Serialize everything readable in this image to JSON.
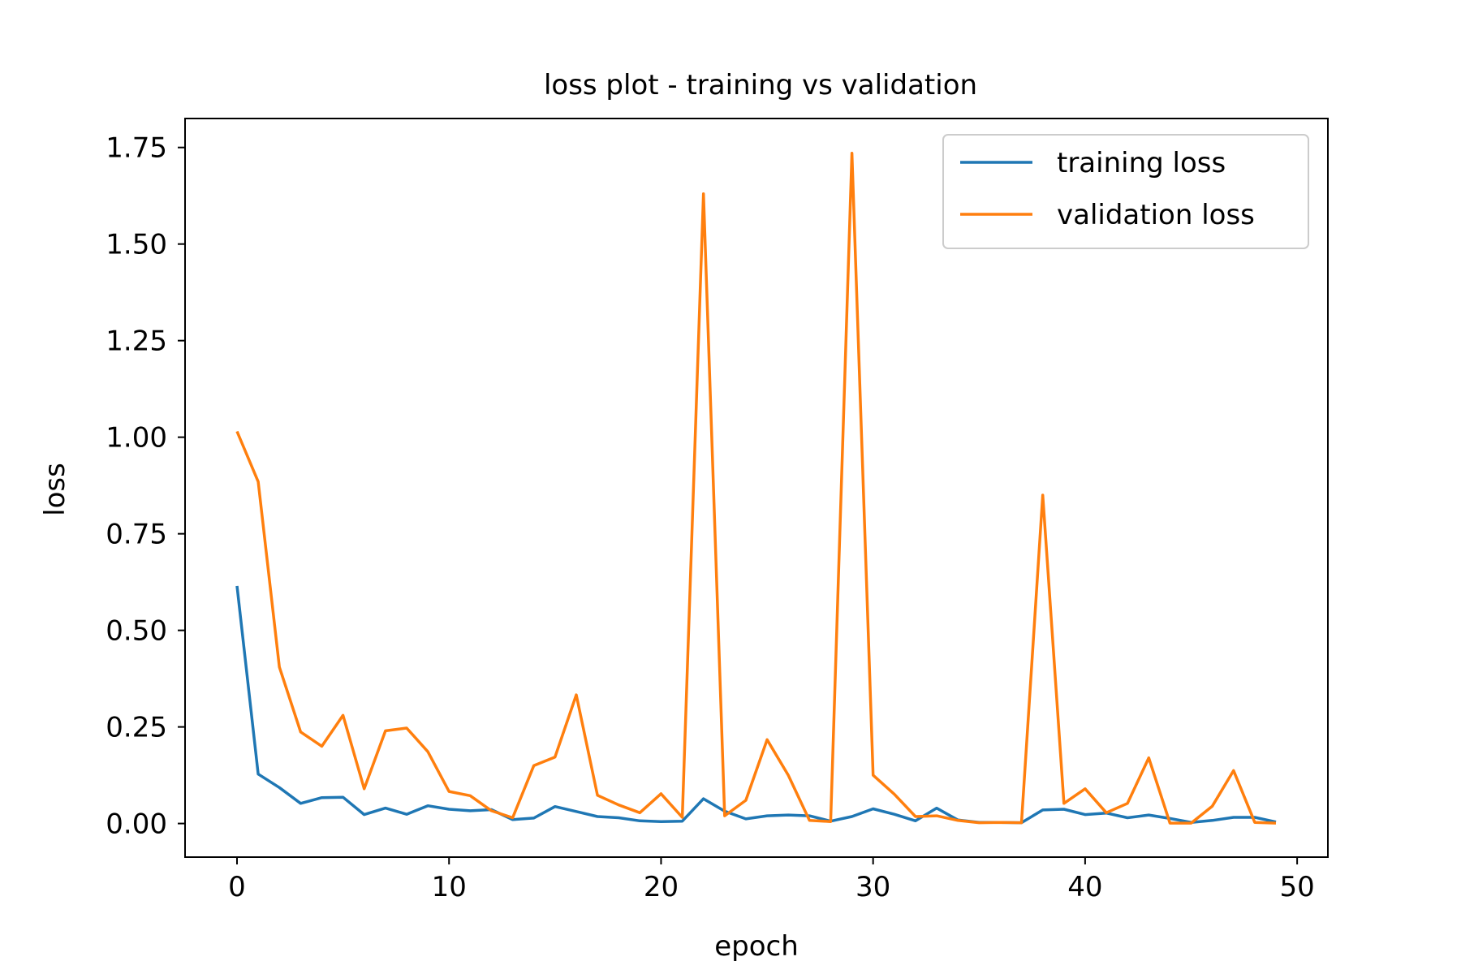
{
  "chart_data": {
    "type": "line",
    "title": "loss plot - training vs validation",
    "xlabel": "epoch",
    "ylabel": "loss",
    "xlim": [
      -2.45,
      51.45
    ],
    "ylim": [
      -0.087,
      1.825
    ],
    "xticks": [
      0,
      10,
      20,
      30,
      40,
      50
    ],
    "xtick_labels": [
      "0",
      "10",
      "20",
      "30",
      "40",
      "50"
    ],
    "yticks": [
      0,
      0.25,
      0.5,
      0.75,
      1.0,
      1.25,
      1.5,
      1.75
    ],
    "ytick_labels": [
      "0.00",
      "0.25",
      "0.50",
      "0.75",
      "1.00",
      "1.25",
      "1.50",
      "1.75"
    ],
    "grid": false,
    "legend": "upper right",
    "x": [
      0,
      1,
      2,
      3,
      4,
      5,
      6,
      7,
      8,
      9,
      10,
      11,
      12,
      13,
      14,
      15,
      16,
      17,
      18,
      19,
      20,
      21,
      22,
      23,
      24,
      25,
      26,
      27,
      28,
      29,
      30,
      31,
      32,
      33,
      34,
      35,
      36,
      37,
      38,
      39,
      40,
      41,
      42,
      43,
      44,
      45,
      46,
      47,
      48,
      49
    ],
    "series": [
      {
        "name": "training loss",
        "color": "#1f77b4",
        "values": [
          0.615,
          0.128,
          0.093,
          0.052,
          0.067,
          0.068,
          0.023,
          0.04,
          0.024,
          0.046,
          0.037,
          0.033,
          0.036,
          0.01,
          0.014,
          0.044,
          0.031,
          0.018,
          0.015,
          0.007,
          0.005,
          0.006,
          0.064,
          0.032,
          0.012,
          0.02,
          0.022,
          0.02,
          0.006,
          0.018,
          0.038,
          0.024,
          0.007,
          0.04,
          0.009,
          0.003,
          0.003,
          0.002,
          0.035,
          0.037,
          0.023,
          0.027,
          0.015,
          0.022,
          0.013,
          0.003,
          0.008,
          0.016,
          0.016,
          0.004
        ]
      },
      {
        "name": "validation loss",
        "color": "#ff7f0e",
        "values": [
          1.015,
          0.885,
          0.405,
          0.237,
          0.2,
          0.28,
          0.09,
          0.24,
          0.247,
          0.186,
          0.083,
          0.072,
          0.033,
          0.015,
          0.15,
          0.172,
          0.333,
          0.073,
          0.048,
          0.028,
          0.077,
          0.016,
          1.63,
          0.02,
          0.06,
          0.217,
          0.125,
          0.008,
          0.005,
          1.735,
          0.125,
          0.076,
          0.018,
          0.02,
          0.008,
          0.002,
          0.003,
          0.002,
          0.85,
          0.052,
          0.09,
          0.028,
          0.052,
          0.17,
          0.001,
          0.001,
          0.045,
          0.137,
          0.003,
          0.001
        ]
      }
    ]
  }
}
